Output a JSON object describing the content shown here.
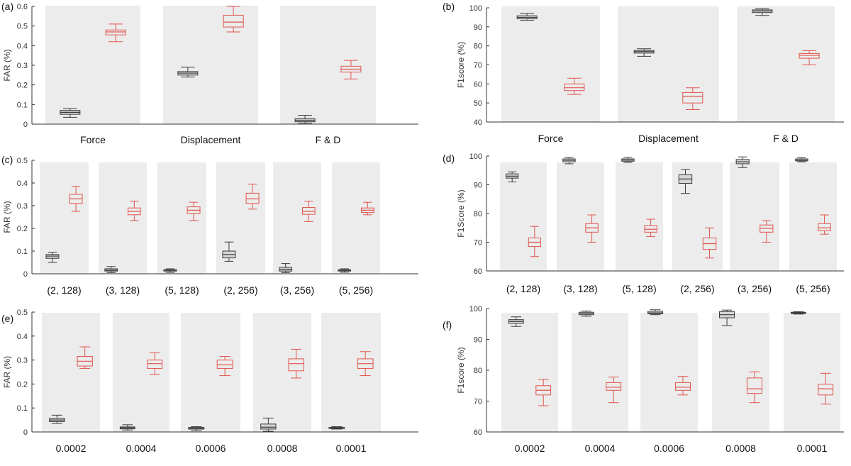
{
  "colors": {
    "series_black": "#3b3b3b",
    "series_red": "#e0554f",
    "median_red": "#e0554f",
    "box_fill_black": "#d6d6d6",
    "panel_bg": "#ececec"
  },
  "chart_data": [
    {
      "panel": "(a)",
      "type": "box",
      "ylabel": "FAR (%)",
      "ylim": [
        0,
        0.6
      ],
      "yticks": [
        "0",
        "0.1",
        "0.2",
        "0.3",
        "0.4",
        "0.5",
        "0.6"
      ],
      "categories": [
        "Force",
        "Displacement",
        "F & D"
      ],
      "series": [
        {
          "color": "black",
          "boxes": [
            {
              "min": 0.035,
              "q1": 0.05,
              "median": 0.06,
              "q3": 0.07,
              "max": 0.08
            },
            {
              "min": 0.24,
              "q1": 0.25,
              "median": 0.26,
              "q3": 0.268,
              "max": 0.29
            },
            {
              "min": 0.005,
              "q1": 0.012,
              "median": 0.02,
              "q3": 0.028,
              "max": 0.045
            }
          ]
        },
        {
          "color": "red",
          "boxes": [
            {
              "min": 0.42,
              "q1": 0.455,
              "median": 0.47,
              "q3": 0.48,
              "max": 0.51
            },
            {
              "min": 0.47,
              "q1": 0.495,
              "median": 0.52,
              "q3": 0.555,
              "max": 0.6
            },
            {
              "min": 0.23,
              "q1": 0.265,
              "median": 0.28,
              "q3": 0.295,
              "max": 0.325
            }
          ]
        }
      ]
    },
    {
      "panel": "(b)",
      "type": "box",
      "ylabel": "F1score (%)",
      "ylim": [
        40,
        100
      ],
      "yticks": [
        "40",
        "50",
        "60",
        "70",
        "80",
        "90",
        "100"
      ],
      "categories": [
        "Force",
        "Displacement",
        "F & D"
      ],
      "series": [
        {
          "color": "black",
          "boxes": [
            {
              "min": 93.5,
              "q1": 94.2,
              "median": 95.0,
              "q3": 95.8,
              "max": 97.0
            },
            {
              "min": 74.5,
              "q1": 76.2,
              "median": 77.0,
              "q3": 77.6,
              "max": 78.5
            },
            {
              "min": 96.0,
              "q1": 97.5,
              "median": 98.3,
              "q3": 98.9,
              "max": 99.6
            }
          ]
        },
        {
          "color": "red",
          "boxes": [
            {
              "min": 54.5,
              "q1": 56.5,
              "median": 58.0,
              "q3": 60.0,
              "max": 63.0
            },
            {
              "min": 46.5,
              "q1": 50.0,
              "median": 53.5,
              "q3": 55.5,
              "max": 58.0
            },
            {
              "min": 70.0,
              "q1": 73.5,
              "median": 75.0,
              "q3": 76.0,
              "max": 77.5
            }
          ]
        }
      ]
    },
    {
      "panel": "(c)",
      "type": "box",
      "ylabel": "FAR (%)",
      "ylim": [
        0,
        0.5
      ],
      "yticks": [
        "0",
        "0.1",
        "0.2",
        "0.3",
        "0.4",
        "0.5"
      ],
      "categories": [
        "(2, 128)",
        "(3, 128)",
        "(5, 128)",
        "(2, 256)",
        "(3, 256)",
        "(5, 256)"
      ],
      "series": [
        {
          "color": "black",
          "boxes": [
            {
              "min": 0.05,
              "q1": 0.068,
              "median": 0.078,
              "q3": 0.085,
              "max": 0.095
            },
            {
              "min": 0.005,
              "q1": 0.012,
              "median": 0.016,
              "q3": 0.022,
              "max": 0.032
            },
            {
              "min": 0.006,
              "q1": 0.012,
              "median": 0.015,
              "q3": 0.018,
              "max": 0.022
            },
            {
              "min": 0.055,
              "q1": 0.07,
              "median": 0.085,
              "q3": 0.1,
              "max": 0.14
            },
            {
              "min": 0.005,
              "q1": 0.012,
              "median": 0.02,
              "q3": 0.028,
              "max": 0.045
            },
            {
              "min": 0.007,
              "q1": 0.012,
              "median": 0.015,
              "q3": 0.018,
              "max": 0.022
            }
          ]
        },
        {
          "color": "red",
          "boxes": [
            {
              "min": 0.275,
              "q1": 0.31,
              "median": 0.33,
              "q3": 0.35,
              "max": 0.385
            },
            {
              "min": 0.235,
              "q1": 0.26,
              "median": 0.275,
              "q3": 0.29,
              "max": 0.32
            },
            {
              "min": 0.235,
              "q1": 0.265,
              "median": 0.28,
              "q3": 0.295,
              "max": 0.315
            },
            {
              "min": 0.285,
              "q1": 0.31,
              "median": 0.33,
              "q3": 0.355,
              "max": 0.395
            },
            {
              "min": 0.23,
              "q1": 0.262,
              "median": 0.275,
              "q3": 0.292,
              "max": 0.32
            },
            {
              "min": 0.26,
              "q1": 0.27,
              "median": 0.28,
              "q3": 0.29,
              "max": 0.315
            }
          ]
        }
      ]
    },
    {
      "panel": "(d)",
      "type": "box",
      "ylabel": "F1Score (%)",
      "ylim": [
        60,
        100
      ],
      "yticks": [
        "60",
        "70",
        "80",
        "90",
        "100"
      ],
      "categories": [
        "(2, 128)",
        "(3, 128)",
        "(5, 128)",
        "(2, 256)",
        "(3, 256)",
        "(5, 256)"
      ],
      "series": [
        {
          "color": "black",
          "boxes": [
            {
              "min": 91.0,
              "q1": 92.3,
              "median": 93.0,
              "q3": 93.8,
              "max": 94.5
            },
            {
              "min": 97.3,
              "q1": 98.0,
              "median": 98.5,
              "q3": 99.0,
              "max": 99.5
            },
            {
              "min": 97.8,
              "q1": 98.2,
              "median": 98.6,
              "q3": 99.0,
              "max": 99.6
            },
            {
              "min": 87.0,
              "q1": 90.5,
              "median": 92.0,
              "q3": 93.5,
              "max": 95.3
            },
            {
              "min": 96.0,
              "q1": 97.3,
              "median": 98.0,
              "q3": 98.8,
              "max": 99.7
            },
            {
              "min": 98.0,
              "q1": 98.3,
              "median": 98.6,
              "q3": 99.0,
              "max": 99.4
            }
          ]
        },
        {
          "color": "red",
          "boxes": [
            {
              "min": 65.0,
              "q1": 68.5,
              "median": 70.0,
              "q3": 71.5,
              "max": 75.5
            },
            {
              "min": 70.0,
              "q1": 73.5,
              "median": 75.0,
              "q3": 76.5,
              "max": 79.5
            },
            {
              "min": 72.0,
              "q1": 73.5,
              "median": 74.5,
              "q3": 75.8,
              "max": 78.0
            },
            {
              "min": 64.5,
              "q1": 67.5,
              "median": 69.5,
              "q3": 71.5,
              "max": 75.0
            },
            {
              "min": 70.0,
              "q1": 73.5,
              "median": 74.8,
              "q3": 76.0,
              "max": 77.5
            },
            {
              "min": 72.8,
              "q1": 74.0,
              "median": 75.0,
              "q3": 76.5,
              "max": 79.5
            }
          ]
        }
      ]
    },
    {
      "panel": "(e)",
      "type": "box",
      "ylabel": "FAR (%)",
      "ylim": [
        0,
        0.5
      ],
      "yticks": [
        "0",
        "0.1",
        "0.2",
        "0.3",
        "0.4",
        "0.5"
      ],
      "categories": [
        "0.0002",
        "0.0004",
        "0.0006",
        "0.0008",
        "0.0001"
      ],
      "series": [
        {
          "color": "black",
          "boxes": [
            {
              "min": 0.035,
              "q1": 0.043,
              "median": 0.05,
              "q3": 0.057,
              "max": 0.07
            },
            {
              "min": 0.008,
              "q1": 0.013,
              "median": 0.017,
              "q3": 0.021,
              "max": 0.03
            },
            {
              "min": 0.005,
              "q1": 0.012,
              "median": 0.015,
              "q3": 0.019,
              "max": 0.022
            },
            {
              "min": 0.003,
              "q1": 0.012,
              "median": 0.02,
              "q3": 0.033,
              "max": 0.058
            },
            {
              "min": 0.012,
              "q1": 0.015,
              "median": 0.017,
              "q3": 0.019,
              "max": 0.022
            }
          ]
        },
        {
          "color": "red",
          "boxes": [
            {
              "min": 0.265,
              "q1": 0.275,
              "median": 0.295,
              "q3": 0.315,
              "max": 0.355
            },
            {
              "min": 0.24,
              "q1": 0.265,
              "median": 0.285,
              "q3": 0.3,
              "max": 0.33
            },
            {
              "min": 0.235,
              "q1": 0.265,
              "median": 0.28,
              "q3": 0.3,
              "max": 0.315
            },
            {
              "min": 0.225,
              "q1": 0.255,
              "median": 0.285,
              "q3": 0.305,
              "max": 0.345
            },
            {
              "min": 0.235,
              "q1": 0.265,
              "median": 0.285,
              "q3": 0.305,
              "max": 0.335
            }
          ]
        }
      ]
    },
    {
      "panel": "(f)",
      "type": "box",
      "ylabel": "F1score (%)",
      "ylim": [
        60,
        100
      ],
      "yticks": [
        "60",
        "70",
        "80",
        "90",
        "100"
      ],
      "categories": [
        "0.0002",
        "0.0004",
        "0.0006",
        "0.0008",
        "0.0001"
      ],
      "series": [
        {
          "color": "black",
          "boxes": [
            {
              "min": 94.2,
              "q1": 95.2,
              "median": 95.8,
              "q3": 96.4,
              "max": 97.3
            },
            {
              "min": 97.5,
              "q1": 98.0,
              "median": 98.4,
              "q3": 98.8,
              "max": 99.2
            },
            {
              "min": 98.0,
              "q1": 98.3,
              "median": 98.6,
              "q3": 99.1,
              "max": 99.6
            },
            {
              "min": 94.5,
              "q1": 97.0,
              "median": 98.0,
              "q3": 99.0,
              "max": 99.5
            },
            {
              "min": 98.2,
              "q1": 98.4,
              "median": 98.6,
              "q3": 98.8,
              "max": 99.0
            }
          ]
        },
        {
          "color": "red",
          "boxes": [
            {
              "min": 68.5,
              "q1": 72.0,
              "median": 73.5,
              "q3": 75.0,
              "max": 77.0
            },
            {
              "min": 69.5,
              "q1": 73.5,
              "median": 74.5,
              "q3": 76.0,
              "max": 77.8
            },
            {
              "min": 72.0,
              "q1": 73.5,
              "median": 74.5,
              "q3": 76.0,
              "max": 78.0
            },
            {
              "min": 69.5,
              "q1": 72.5,
              "median": 74.0,
              "q3": 77.5,
              "max": 79.5
            },
            {
              "min": 69.0,
              "q1": 72.0,
              "median": 74.0,
              "q3": 75.5,
              "max": 79.0
            }
          ]
        }
      ]
    }
  ]
}
